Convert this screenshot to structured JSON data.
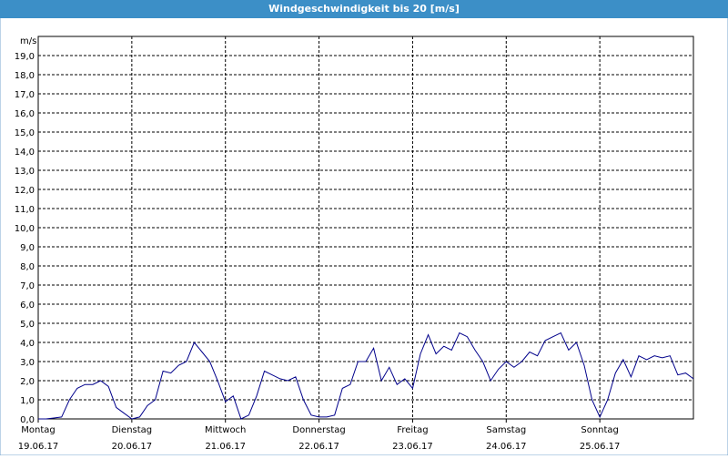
{
  "chart_data": {
    "type": "line",
    "title": "Windgeschwindigkeit bis 20 [m/s]",
    "y_label": "m/s",
    "xlim": [
      0,
      168
    ],
    "ylim": [
      0,
      20
    ],
    "grid": true,
    "xticks": [
      {
        "value": 0,
        "label": "Montag",
        "date": "19.06.17"
      },
      {
        "value": 24,
        "label": "Dienstag",
        "date": "20.06.17"
      },
      {
        "value": 48,
        "label": "Mittwoch",
        "date": "21.06.17"
      },
      {
        "value": 72,
        "label": "Donnerstag",
        "date": "22.06.17"
      },
      {
        "value": 96,
        "label": "Freitag",
        "date": "23.06.17"
      },
      {
        "value": 120,
        "label": "Samstag",
        "date": "24.06.17"
      },
      {
        "value": 144,
        "label": "Sonntag",
        "date": "25.06.17"
      }
    ],
    "yticks": [
      {
        "value": 0,
        "label": "0,0"
      },
      {
        "value": 1,
        "label": "1,0"
      },
      {
        "value": 2,
        "label": "2,0"
      },
      {
        "value": 3,
        "label": "3,0"
      },
      {
        "value": 4,
        "label": "4,0"
      },
      {
        "value": 5,
        "label": "5,0"
      },
      {
        "value": 6,
        "label": "6,0"
      },
      {
        "value": 7,
        "label": "7,0"
      },
      {
        "value": 8,
        "label": "8,0"
      },
      {
        "value": 9,
        "label": "9,0"
      },
      {
        "value": 10,
        "label": "10,0"
      },
      {
        "value": 11,
        "label": "11,0"
      },
      {
        "value": 12,
        "label": "12,0"
      },
      {
        "value": 13,
        "label": "13,0"
      },
      {
        "value": 14,
        "label": "14,0"
      },
      {
        "value": 15,
        "label": "15,0"
      },
      {
        "value": 16,
        "label": "16,0"
      },
      {
        "value": 17,
        "label": "17,0"
      },
      {
        "value": 18,
        "label": "18,0"
      },
      {
        "value": 19,
        "label": "19,0"
      }
    ],
    "series": [
      {
        "color": "#00008b",
        "x": [
          0,
          2,
          4,
          6,
          8,
          10,
          12,
          14,
          16,
          18,
          20,
          22,
          24,
          26,
          28,
          30,
          32,
          34,
          36,
          38,
          40,
          42,
          44,
          46,
          48,
          50,
          52,
          54,
          56,
          58,
          60,
          62,
          64,
          66,
          68,
          70,
          72,
          74,
          76,
          78,
          80,
          82,
          84,
          86,
          88,
          90,
          92,
          94,
          96,
          98,
          100,
          102,
          104,
          106,
          108,
          110,
          112,
          114,
          116,
          118,
          120,
          122,
          124,
          126,
          128,
          130,
          132,
          134,
          136,
          138,
          140,
          142,
          144,
          146,
          148,
          150,
          152,
          154,
          156,
          158,
          160,
          162,
          164,
          166,
          168
        ],
        "values": [
          0,
          0,
          0.05,
          0.1,
          1.0,
          1.6,
          1.8,
          1.8,
          2.0,
          1.7,
          0.6,
          0.3,
          0,
          0.1,
          0.7,
          1.0,
          2.5,
          2.4,
          2.8,
          3.0,
          4.0,
          3.5,
          3.0,
          2.0,
          0.9,
          1.2,
          0,
          0.2,
          1.2,
          2.5,
          2.3,
          2.1,
          2.0,
          2.2,
          1.0,
          0.2,
          0.1,
          0.1,
          0.2,
          1.6,
          1.8,
          3.0,
          3.0,
          3.7,
          2.0,
          2.7,
          1.8,
          2.1,
          1.6,
          3.4,
          4.4,
          3.4,
          3.8,
          3.6,
          4.5,
          4.3,
          3.6,
          3.0,
          2.0,
          2.6,
          3.0,
          2.7,
          3.0,
          3.5,
          3.3,
          4.1,
          4.3,
          4.5,
          3.6,
          4.0,
          2.8,
          1.0,
          0.1,
          1.0,
          2.4,
          3.1,
          2.2,
          3.3,
          3.1,
          3.3,
          3.2,
          3.3,
          2.3,
          2.4,
          2.1
        ]
      }
    ]
  }
}
